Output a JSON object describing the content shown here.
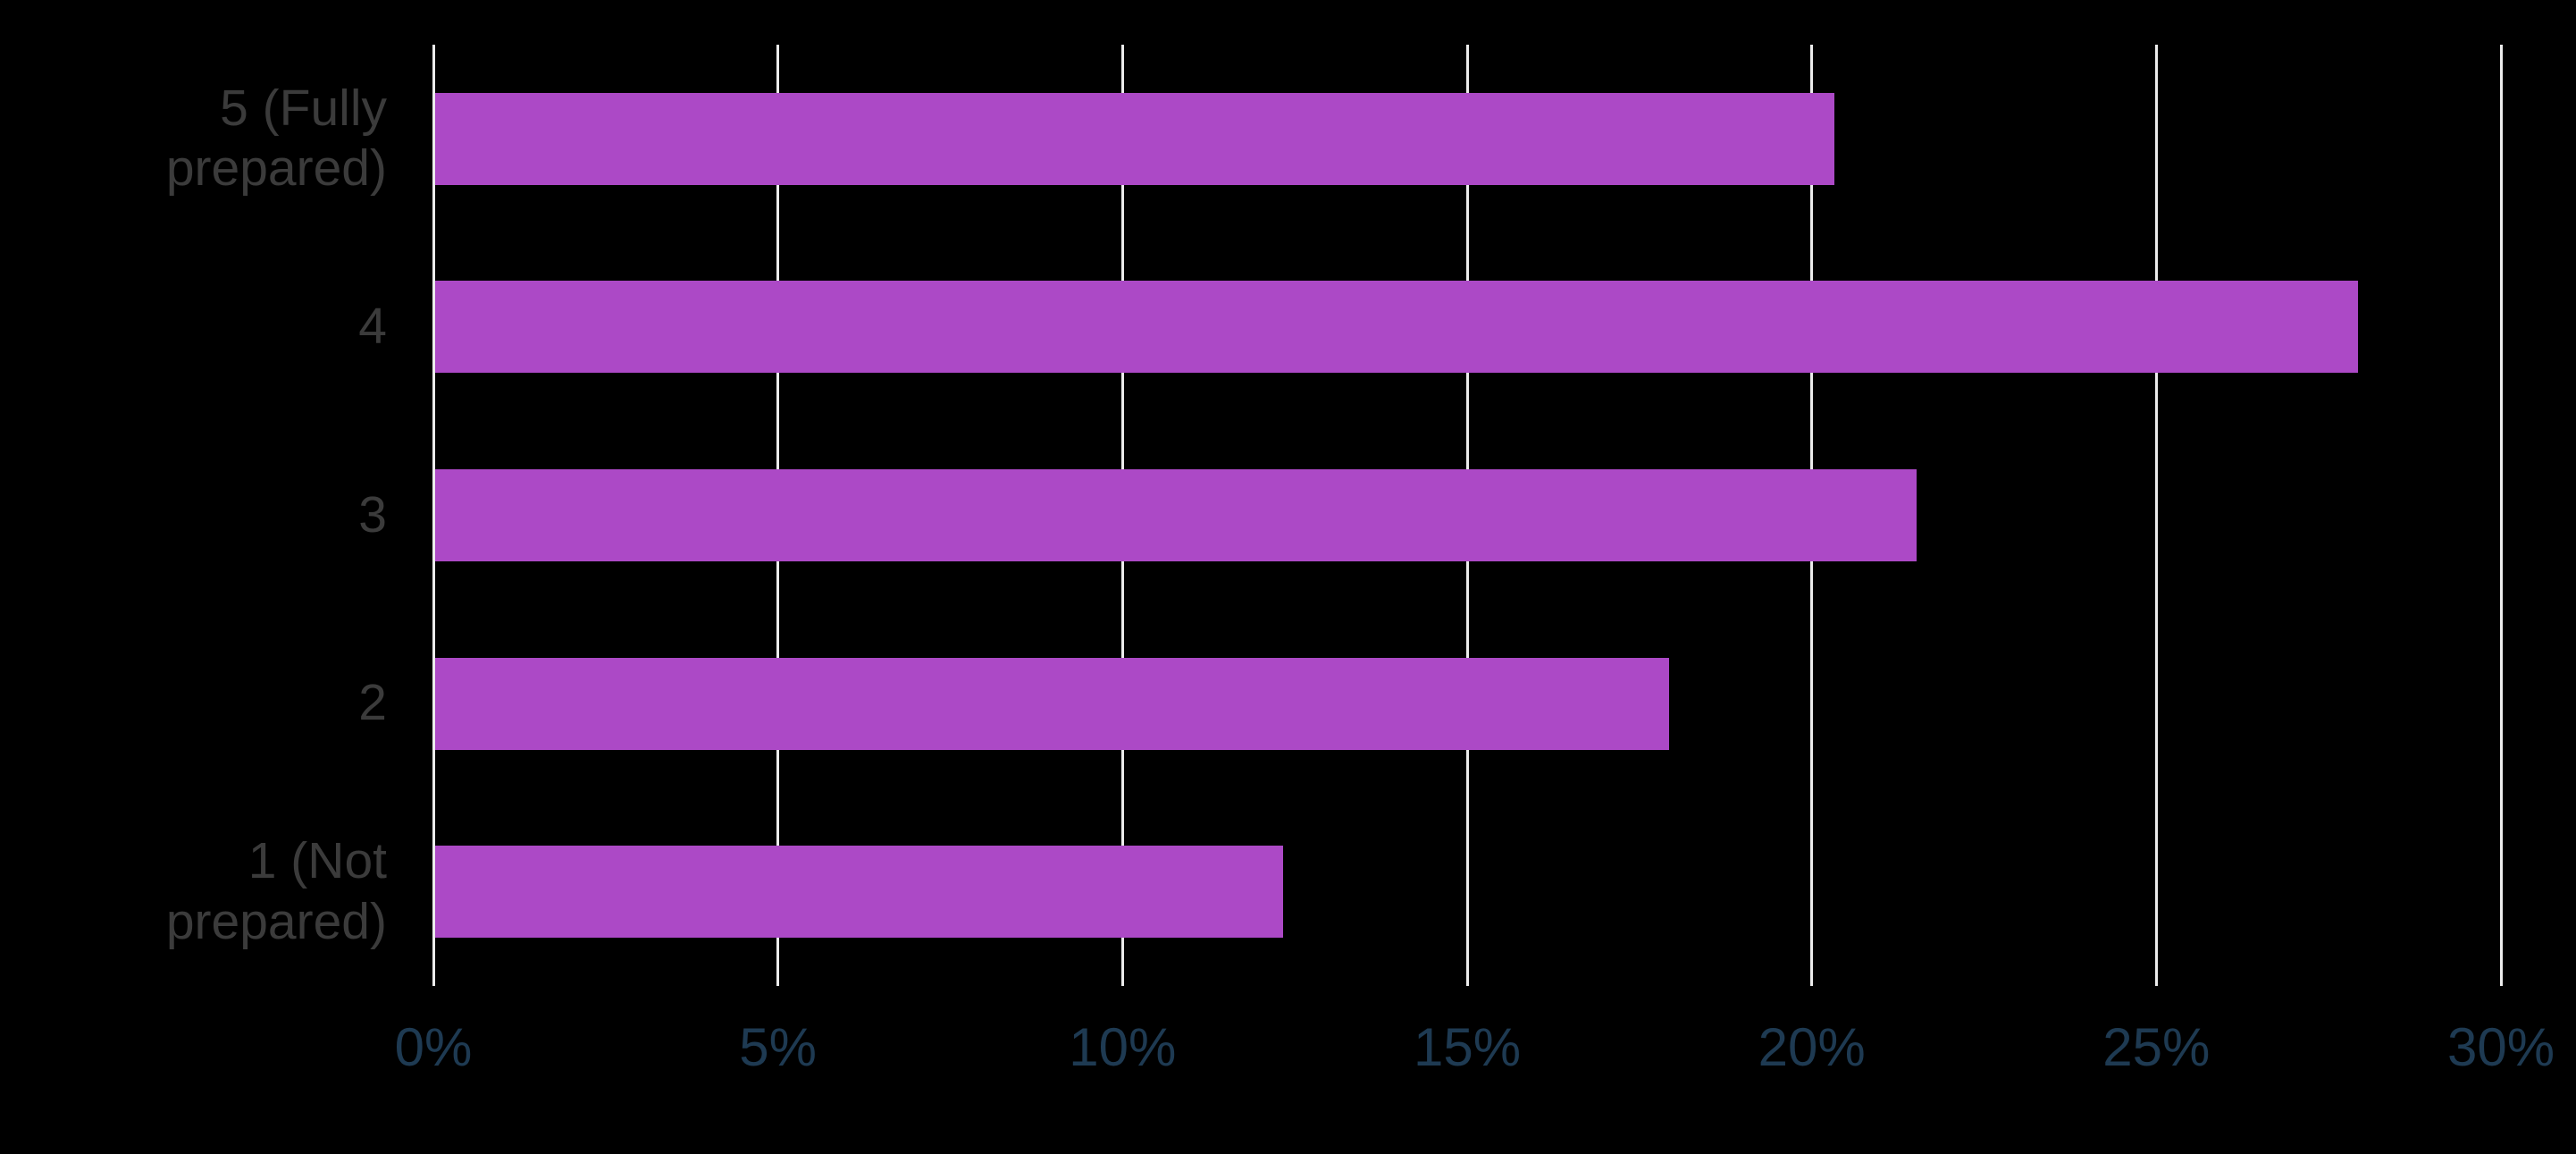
{
  "chart_data": {
    "type": "bar",
    "orientation": "horizontal",
    "title": "",
    "categories": [
      "5 (Fully prepared)",
      "4",
      "3",
      "2",
      "1 (Not prepared)"
    ],
    "values": [
      20.3,
      27.9,
      21.5,
      17.9,
      12.3
    ],
    "unit": "percent",
    "x_ticks": [
      "0%",
      "5%",
      "10%",
      "15%",
      "20%",
      "25%",
      "30%"
    ],
    "x_tick_values": [
      0,
      5,
      10,
      15,
      20,
      25,
      30
    ],
    "xlim": [
      0,
      30
    ],
    "grid": "vertical-gridlines-on",
    "legend": "none",
    "colors": {
      "background": "#000000",
      "bar": "#ac49c6",
      "gridline": "#ececec",
      "x_tick_label": "#1e3a52",
      "y_tick_label": "#3b3b3b"
    }
  }
}
